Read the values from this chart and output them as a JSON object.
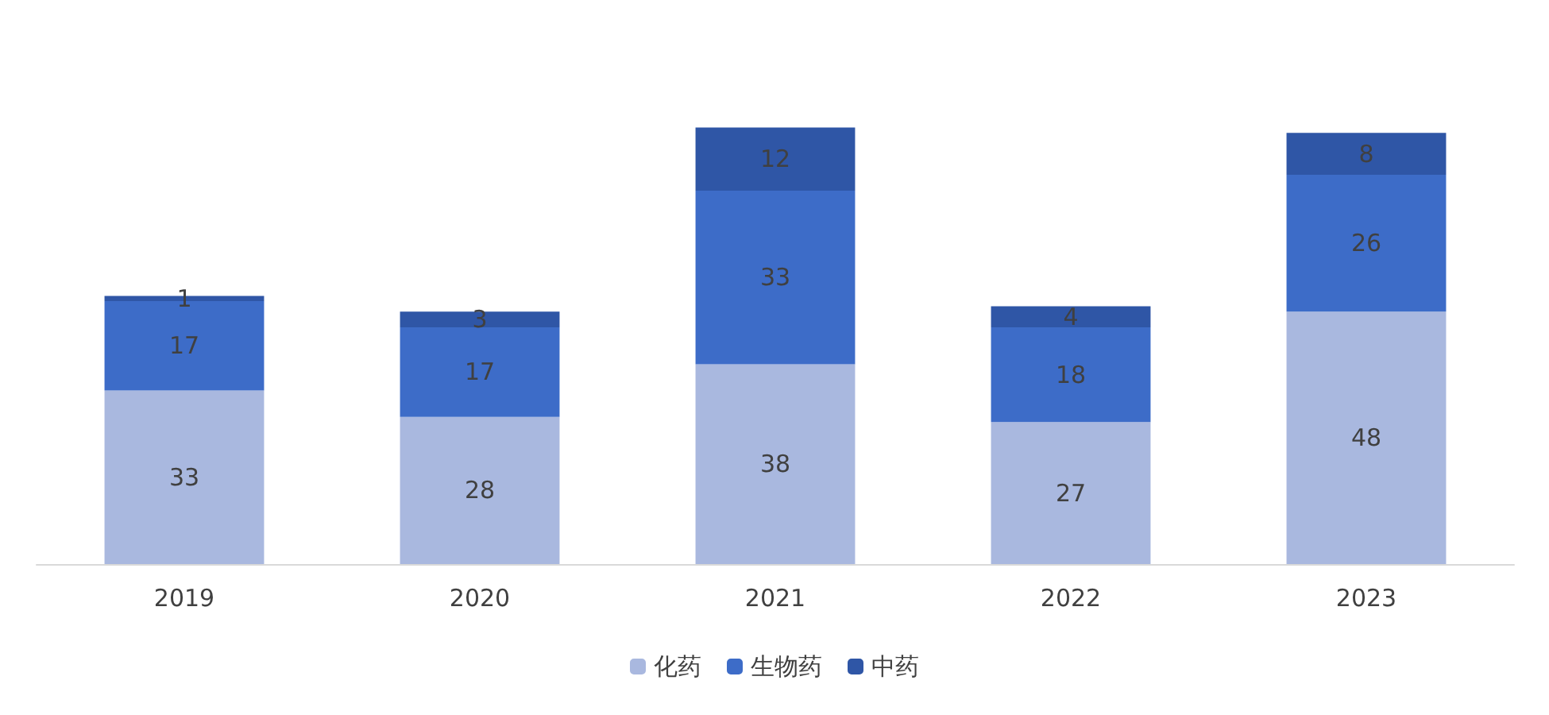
{
  "chart_data": {
    "type": "bar",
    "stacked": true,
    "categories": [
      "2019",
      "2020",
      "2021",
      "2022",
      "2023"
    ],
    "series": [
      {
        "name": "化药",
        "color": "#a9b8df",
        "values": [
          33,
          28,
          38,
          27,
          48
        ]
      },
      {
        "name": "生物药",
        "color": "#3d6cc8",
        "values": [
          17,
          17,
          33,
          18,
          26
        ]
      },
      {
        "name": "中药",
        "color": "#2f56a6",
        "values": [
          1,
          3,
          12,
          4,
          8
        ]
      }
    ],
    "data_labels": true,
    "legend": "bottom",
    "tick_labels": "x",
    "grid": false
  }
}
